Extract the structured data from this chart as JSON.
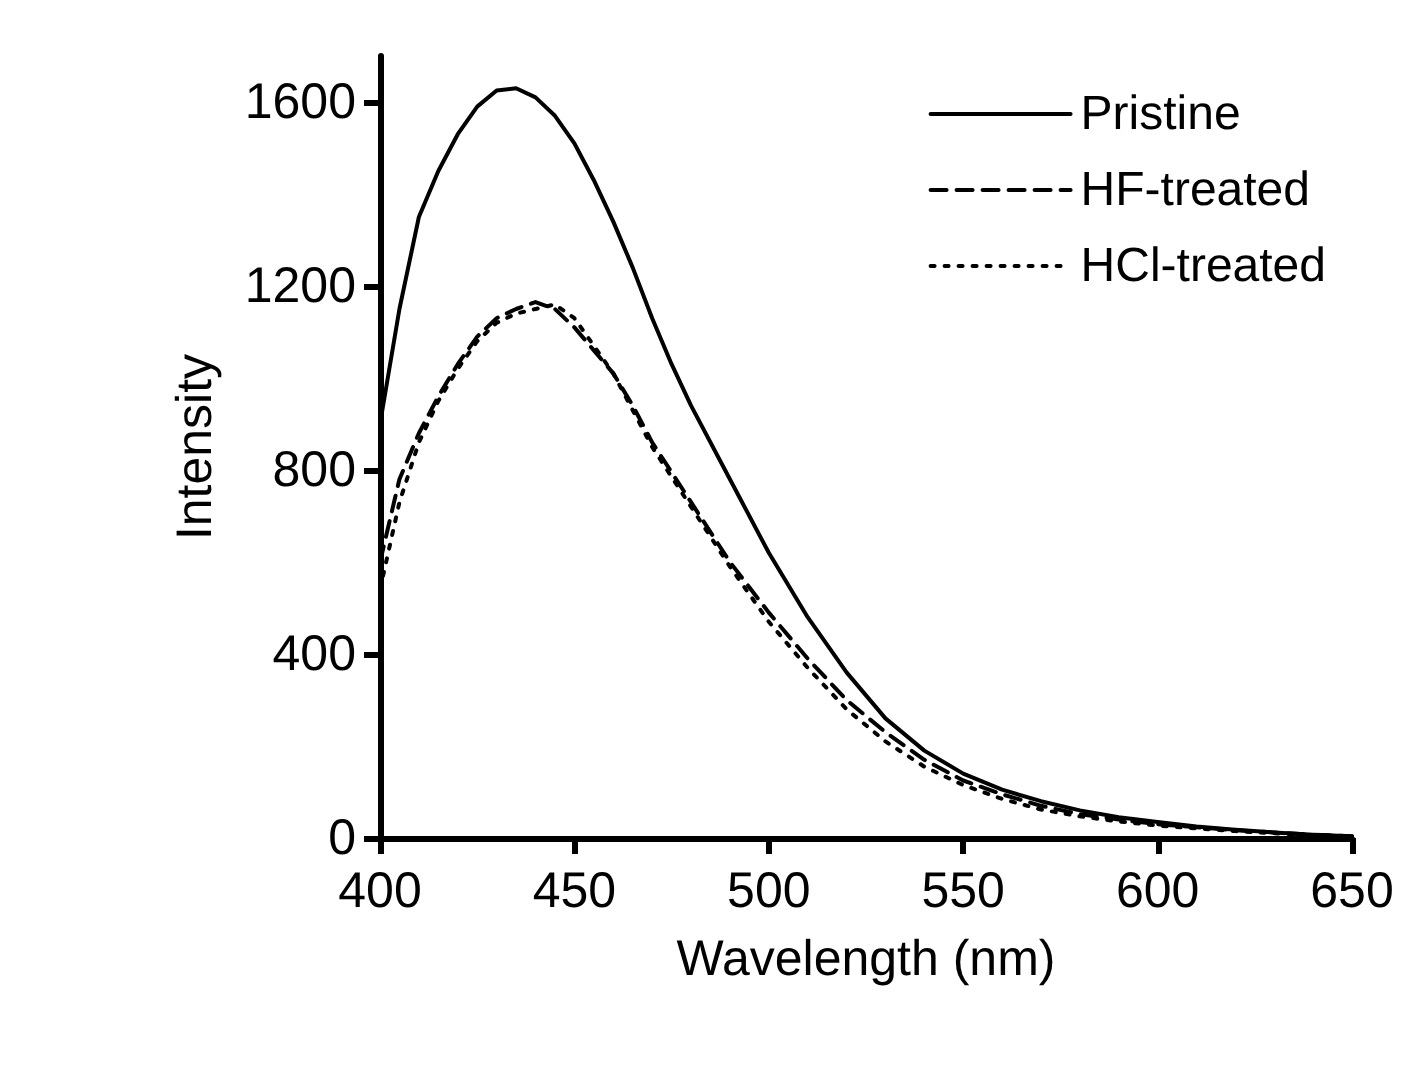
{
  "chart_data": {
    "type": "line",
    "xlabel": "Wavelength (nm)",
    "ylabel": "Intensity",
    "xlim": [
      400,
      650
    ],
    "xticks": [
      400,
      450,
      500,
      550,
      600,
      650
    ],
    "ylim": [
      0,
      1700
    ],
    "yticks": [
      0,
      400,
      800,
      1200,
      1600
    ],
    "grid": false,
    "legend": "top right",
    "marker": "none",
    "series": [
      {
        "name": "Pristine",
        "color": "#000000",
        "line_style": "solid",
        "x": [
          400,
          405,
          410,
          415,
          420,
          425,
          430,
          435,
          440,
          445,
          450,
          455,
          460,
          465,
          470,
          475,
          480,
          490,
          500,
          510,
          520,
          530,
          540,
          550,
          560,
          570,
          580,
          590,
          600,
          610,
          620,
          630,
          640,
          650
        ],
        "values": [
          900,
          1150,
          1350,
          1450,
          1530,
          1590,
          1625,
          1630,
          1610,
          1570,
          1510,
          1430,
          1340,
          1240,
          1130,
          1030,
          940,
          780,
          620,
          480,
          360,
          260,
          190,
          140,
          105,
          80,
          60,
          45,
          35,
          25,
          18,
          12,
          7,
          4
        ]
      },
      {
        "name": "HF-treated",
        "color": "#000000",
        "line_style": "dashed",
        "x": [
          400,
          405,
          410,
          415,
          420,
          425,
          430,
          435,
          440,
          445,
          450,
          455,
          460,
          465,
          470,
          480,
          490,
          500,
          510,
          520,
          530,
          540,
          550,
          560,
          570,
          580,
          590,
          600,
          620,
          640,
          650
        ],
        "values": [
          600,
          780,
          880,
          960,
          1030,
          1090,
          1130,
          1150,
          1165,
          1150,
          1110,
          1060,
          1010,
          940,
          860,
          730,
          600,
          490,
          390,
          300,
          230,
          170,
          125,
          95,
          70,
          52,
          40,
          30,
          17,
          7,
          4
        ]
      },
      {
        "name": "HCl-treated",
        "color": "#000000",
        "line_style": "dotted",
        "x": [
          400,
          405,
          410,
          415,
          420,
          425,
          430,
          435,
          440,
          445,
          450,
          455,
          460,
          465,
          470,
          480,
          490,
          500,
          510,
          520,
          530,
          540,
          550,
          560,
          570,
          580,
          590,
          600,
          620,
          640,
          650
        ],
        "values": [
          540,
          730,
          860,
          950,
          1020,
          1080,
          1120,
          1140,
          1150,
          1160,
          1130,
          1070,
          1010,
          930,
          850,
          720,
          590,
          470,
          370,
          280,
          210,
          155,
          115,
          85,
          62,
          47,
          36,
          27,
          15,
          6,
          3
        ]
      }
    ]
  }
}
